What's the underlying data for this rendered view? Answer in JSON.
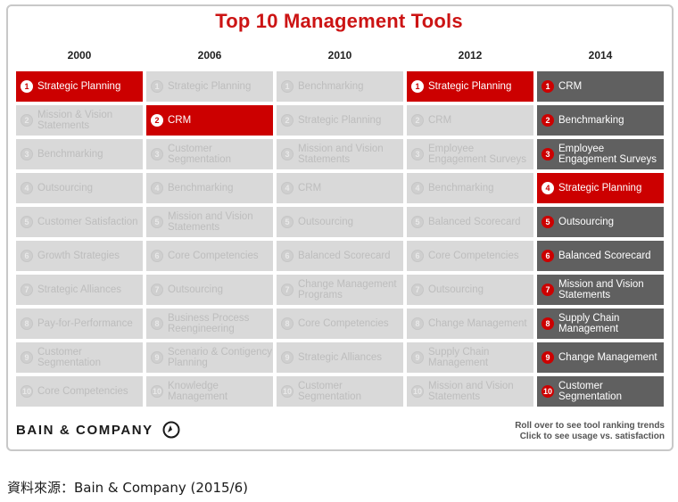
{
  "chart_data": {
    "type": "table",
    "title": "Top 10 Management Tools",
    "columns": [
      "2000",
      "2006",
      "2010",
      "2012",
      "2014"
    ],
    "ranks": [
      "1",
      "2",
      "3",
      "4",
      "5",
      "6",
      "7",
      "8",
      "9",
      "10"
    ],
    "rows_by_year": [
      [
        "Strategic Planning",
        "Mission & Vision Statements",
        "Benchmarking",
        "Outsourcing",
        "Customer Satisfaction",
        "Growth Strategies",
        "Strategic Alliances",
        "Pay-for-Performance",
        "Customer Segmentation",
        "Core Competencies"
      ],
      [
        "Strategic Planning",
        "CRM",
        "Customer Segmentation",
        "Benchmarking",
        "Mission and Vision Statements",
        "Core Competencies",
        "Outsourcing",
        "Business Process Reengineering",
        "Scenario & Contigency Planning",
        "Knowledge Management"
      ],
      [
        "Benchmarking",
        "Strategic Planning",
        "Mission and Vision Statements",
        "CRM",
        "Outsourcing",
        "Balanced Scorecard",
        "Change Management Programs",
        "Core Competencies",
        "Strategic Alliances",
        "Customer Segmentation"
      ],
      [
        "Strategic Planning",
        "CRM",
        "Employee Engagement Surveys",
        "Benchmarking",
        "Balanced Scorecard",
        "Core Competencies",
        "Outsourcing",
        "Change Management",
        "Supply Chain Management",
        "Mission and Vision Statements"
      ],
      [
        "CRM",
        "Benchmarking",
        "Employee Engagement Surveys",
        "Strategic Planning",
        "Outsourcing",
        "Balanced Scorecard",
        "Mission and Vision Statements",
        "Supply Chain Management",
        "Change Management",
        "Customer Segmentation"
      ]
    ],
    "highlighted": [
      [
        0,
        0
      ],
      [
        1,
        1
      ],
      [
        3,
        0
      ],
      [
        4,
        3
      ]
    ],
    "colors": {
      "highlight": "#cc0000",
      "current_year": "#606060",
      "faded": "#d9d9d9",
      "title": "#cc1414"
    }
  },
  "footer": {
    "logo_text": "BAIN & COMPANY",
    "hint_line1": "Roll over to see tool ranking trends",
    "hint_line2": "Click to see usage vs. satisfaction"
  },
  "source_note": "資料來源：Bain & Company (2015/6)"
}
